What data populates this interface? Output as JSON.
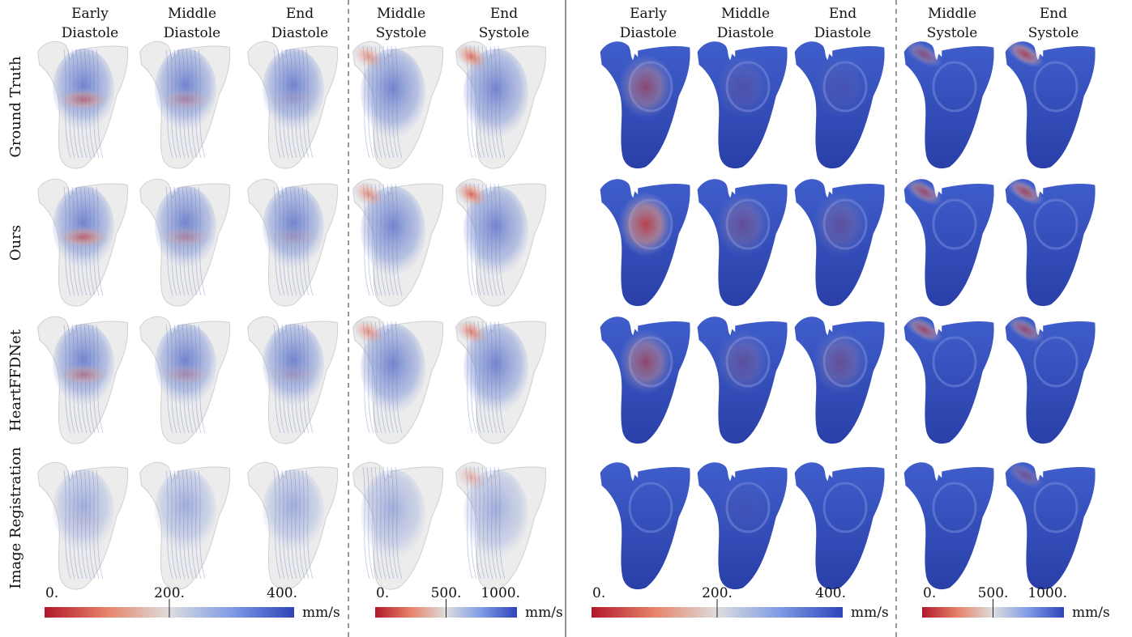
{
  "panels": [
    {
      "id": "streamlines-diastole",
      "style": "stream",
      "columns": [
        "Early Diastole",
        "Middle Diastole",
        "End Diastole"
      ],
      "colorbar": {
        "ticks": [
          "0.",
          "200.",
          "400."
        ],
        "unit": "mm/s"
      }
    },
    {
      "id": "streamlines-systole",
      "style": "stream",
      "columns": [
        "Middle Systole",
        "End Systole"
      ],
      "colorbar": {
        "ticks": [
          "0.",
          "500.",
          "1000."
        ],
        "unit": "mm/s"
      }
    },
    {
      "id": "surface-diastole",
      "style": "surface",
      "columns": [
        "Early Diastole",
        "Middle Diastole",
        "End Diastole"
      ],
      "colorbar": {
        "ticks": [
          "0.",
          "200.",
          "400."
        ],
        "unit": "mm/s"
      }
    },
    {
      "id": "surface-systole",
      "style": "surface",
      "columns": [
        "Middle Systole",
        "End Systole"
      ],
      "colorbar": {
        "ticks": [
          "0.",
          "500.",
          "1000."
        ],
        "unit": "mm/s"
      }
    }
  ],
  "rows": [
    "Ground Truth",
    "Ours",
    "HeartFFDNet",
    "Image Registration"
  ],
  "colormap": {
    "low": "#c0182b",
    "mid": "#dcdcdc",
    "high": "#3a4fc4"
  }
}
